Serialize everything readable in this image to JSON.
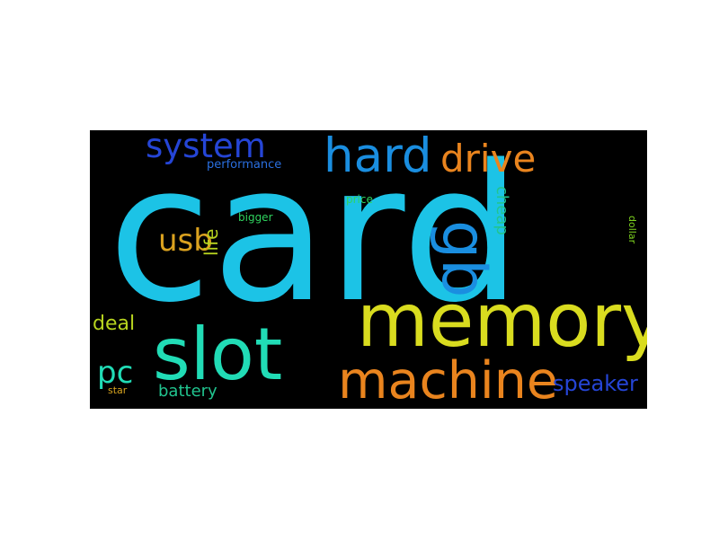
{
  "word_cloud": {
    "background_color": "#000000",
    "words": [
      {
        "id": "card",
        "text": "card",
        "color": "#1cc3e6"
      },
      {
        "id": "memory",
        "text": "memory",
        "color": "#d9dc1f"
      },
      {
        "id": "slot",
        "text": "slot",
        "color": "#21dcb6"
      },
      {
        "id": "machine",
        "text": "machine",
        "color": "#e9841e"
      },
      {
        "id": "hard",
        "text": "hard",
        "color": "#1a8ee0"
      },
      {
        "id": "gb",
        "text": "gb",
        "color": "#1a8ee0"
      },
      {
        "id": "drive",
        "text": "drive",
        "color": "#e9841e"
      },
      {
        "id": "system",
        "text": "system",
        "color": "#2545d6"
      },
      {
        "id": "usb",
        "text": "usb",
        "color": "#dba21f"
      },
      {
        "id": "pc",
        "text": "pc",
        "color": "#21dcb6"
      },
      {
        "id": "speaker",
        "text": "speaker",
        "color": "#2545d6"
      },
      {
        "id": "deal",
        "text": "deal",
        "color": "#b7d31f"
      },
      {
        "id": "battery",
        "text": "battery",
        "color": "#21c48f"
      },
      {
        "id": "life",
        "text": "life",
        "color": "#b7d31f"
      },
      {
        "id": "cheap",
        "text": "cheap",
        "color": "#21c48f"
      },
      {
        "id": "performance",
        "text": "performance",
        "color": "#2a6fe0"
      },
      {
        "id": "price",
        "text": "price",
        "color": "#2fd45f"
      },
      {
        "id": "bigger",
        "text": "bigger",
        "color": "#2fd45f"
      },
      {
        "id": "dollar",
        "text": "dollar",
        "color": "#7dd21f"
      },
      {
        "id": "star",
        "text": "star",
        "color": "#d8a51f"
      }
    ]
  }
}
